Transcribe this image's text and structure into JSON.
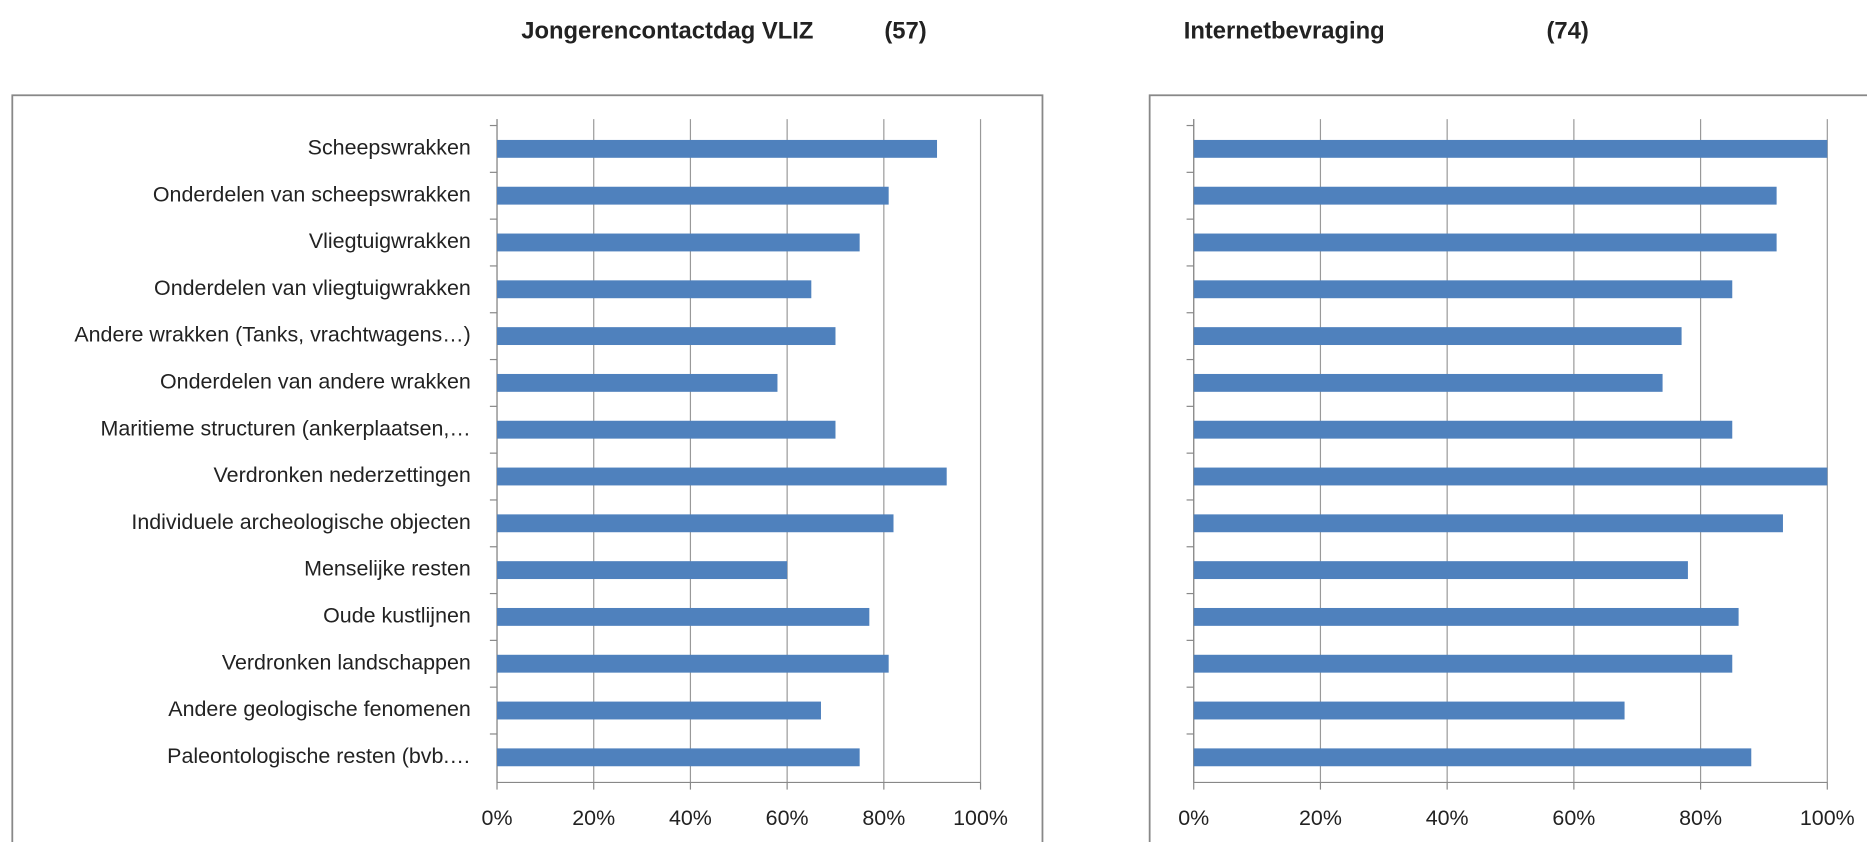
{
  "chart_data": [
    {
      "type": "barh",
      "title": "Jongerencontactdag VLIZ",
      "count_label": "(57)",
      "categories": [
        "Scheepswrakken",
        "Onderdelen van scheepswrakken",
        "Vliegtuigwrakken",
        "Onderdelen van vliegtuigwrakken",
        "Andere wrakken (Tanks, vrachtwagens…)",
        "Onderdelen van andere wrakken",
        "Maritieme structuren (ankerplaatsen,…",
        "Verdronken nederzettingen",
        "Individuele archeologische objecten",
        "Menselijke resten",
        "Oude kustlijnen",
        "Verdronken landschappen",
        "Andere geologische fenomenen",
        "Paleontologische resten (bvb.…"
      ],
      "values": [
        91,
        81,
        75,
        65,
        70,
        58,
        70,
        93,
        82,
        60,
        77,
        81,
        67,
        75
      ],
      "color": "#4f81bd",
      "xlim": [
        0,
        100
      ],
      "xticks": [
        {
          "value": 0,
          "label": "0%"
        },
        {
          "value": 20,
          "label": "20%"
        },
        {
          "value": 40,
          "label": "40%"
        },
        {
          "value": 60,
          "label": "60%"
        },
        {
          "value": 80,
          "label": "80%"
        },
        {
          "value": 100,
          "label": "100%"
        }
      ],
      "grid": true
    },
    {
      "type": "barh",
      "title": "Internetbevraging",
      "count_label": "(74)",
      "categories": [
        null,
        null,
        null,
        null,
        null,
        null,
        null,
        null,
        null,
        null,
        null,
        null,
        null,
        null
      ],
      "values": [
        100,
        92,
        92,
        85,
        77,
        74,
        85,
        100,
        93,
        78,
        86,
        85,
        68,
        88
      ],
      "color": "#4f81bd",
      "xlim": [
        0,
        100
      ],
      "xticks": [
        {
          "value": 0,
          "label": "0%"
        },
        {
          "value": 20,
          "label": "20%"
        },
        {
          "value": 40,
          "label": "40%"
        },
        {
          "value": 60,
          "label": "60%"
        },
        {
          "value": 80,
          "label": "80%"
        },
        {
          "value": 100,
          "label": "100%"
        }
      ],
      "grid": true
    }
  ]
}
